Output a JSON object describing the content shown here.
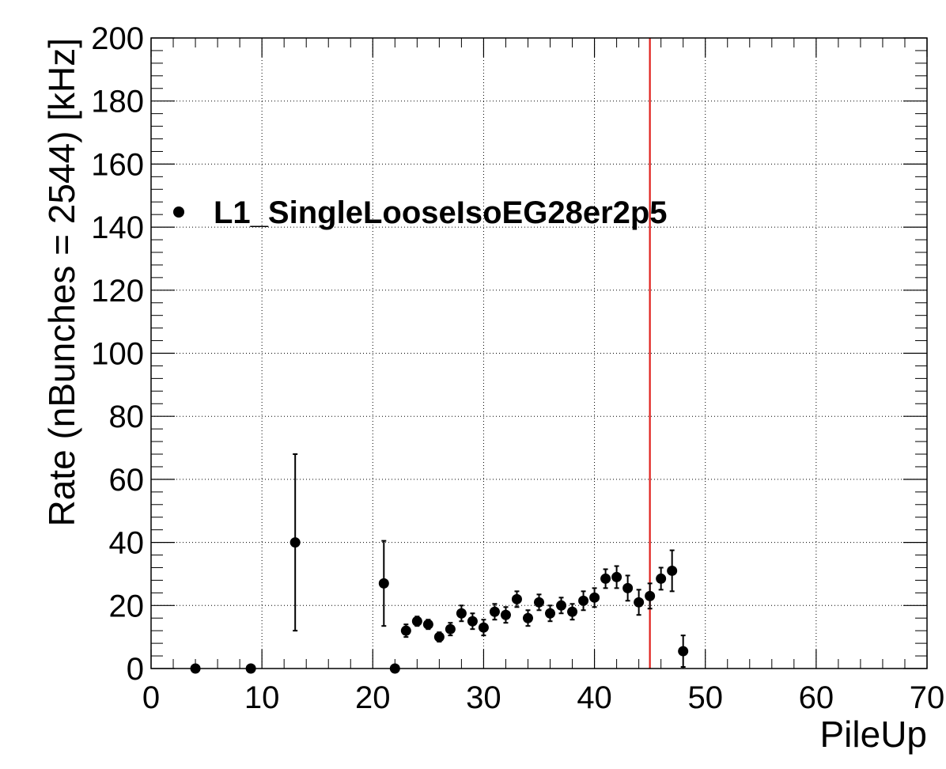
{
  "chart_data": {
    "type": "scatter",
    "xlabel": "PileUp",
    "ylabel": "Rate (nBunches = 2544) [kHz]",
    "xlim": [
      0,
      70
    ],
    "ylim": [
      0,
      200
    ],
    "xticks": [
      "0",
      "10",
      "20",
      "30",
      "40",
      "50",
      "60",
      "70"
    ],
    "yticks": [
      "0",
      "20",
      "40",
      "60",
      "80",
      "100",
      "120",
      "140",
      "160",
      "180",
      "200"
    ],
    "grid": true,
    "legend_position": "upper-left",
    "vertical_line": {
      "x": 45,
      "color": "#e0201b"
    },
    "series": [
      {
        "name": "L1_SingleLooseIsoEG28er2p5",
        "marker": "circle",
        "color": "#000000",
        "points": [
          {
            "x": 4,
            "y": 0,
            "err": 0
          },
          {
            "x": 9,
            "y": 0,
            "err": 0
          },
          {
            "x": 13,
            "y": 40,
            "err": 28
          },
          {
            "x": 21,
            "y": 27,
            "err": 13.5
          },
          {
            "x": 22,
            "y": 0,
            "err": 0
          },
          {
            "x": 23,
            "y": 12,
            "err": 2
          },
          {
            "x": 24,
            "y": 15,
            "err": 1.5
          },
          {
            "x": 25,
            "y": 14,
            "err": 1.5
          },
          {
            "x": 26,
            "y": 10,
            "err": 1.5
          },
          {
            "x": 27,
            "y": 12.5,
            "err": 2
          },
          {
            "x": 28,
            "y": 17.5,
            "err": 2.5
          },
          {
            "x": 29,
            "y": 15,
            "err": 2.5
          },
          {
            "x": 30,
            "y": 13,
            "err": 2.5
          },
          {
            "x": 31,
            "y": 18,
            "err": 2.5
          },
          {
            "x": 32,
            "y": 17,
            "err": 2.5
          },
          {
            "x": 33,
            "y": 22,
            "err": 2.5
          },
          {
            "x": 34,
            "y": 16,
            "err": 2.5
          },
          {
            "x": 35,
            "y": 21,
            "err": 2.5
          },
          {
            "x": 36,
            "y": 17.5,
            "err": 2.5
          },
          {
            "x": 37,
            "y": 20,
            "err": 2.5
          },
          {
            "x": 38,
            "y": 18,
            "err": 2.5
          },
          {
            "x": 39,
            "y": 21.5,
            "err": 3
          },
          {
            "x": 40,
            "y": 22.5,
            "err": 3
          },
          {
            "x": 41,
            "y": 28.5,
            "err": 3
          },
          {
            "x": 42,
            "y": 29,
            "err": 3.5
          },
          {
            "x": 43,
            "y": 25.5,
            "err": 4
          },
          {
            "x": 44,
            "y": 21,
            "err": 4
          },
          {
            "x": 45,
            "y": 23,
            "err": 4
          },
          {
            "x": 46,
            "y": 28.5,
            "err": 3.5
          },
          {
            "x": 47,
            "y": 31,
            "err": 6.5
          },
          {
            "x": 48,
            "y": 5.5,
            "err": 5
          }
        ]
      }
    ]
  }
}
